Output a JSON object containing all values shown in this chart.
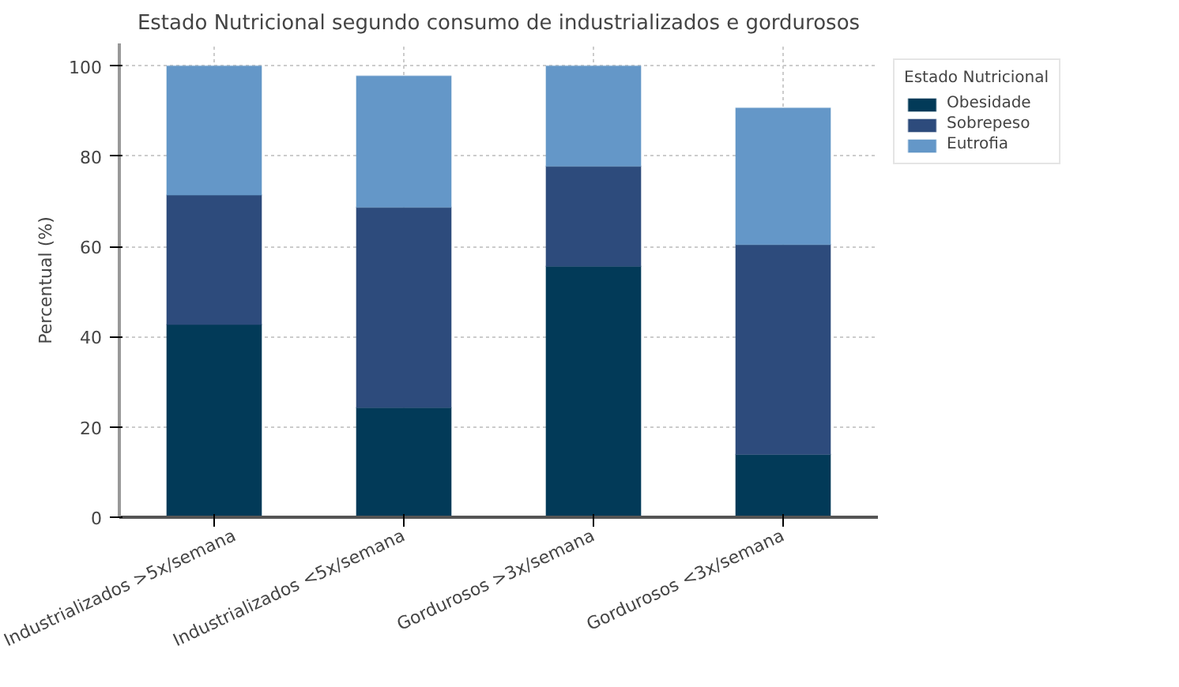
{
  "chart_data": {
    "type": "bar",
    "title": "Estado Nutricional segundo consumo de industrializados e gordurosos",
    "ylabel": "Percentual (%)",
    "legend_title": "Estado Nutricional",
    "categories": [
      "Industrializados >5x/semana",
      "Industrializados <5x/semana",
      "Gordurosos >3x/semana",
      "Gordurosos <3x/semana"
    ],
    "stacked": true,
    "series": [
      {
        "name": "Obesidade",
        "color": "#023a58",
        "values": [
          42.7,
          24.3,
          55.6,
          13.9
        ]
      },
      {
        "name": "Sobrepeso",
        "color": "#2d4b7c",
        "values": [
          28.7,
          44.4,
          22.2,
          46.5
        ]
      },
      {
        "name": "Eutrofia",
        "color": "#6497c8",
        "values": [
          28.6,
          29.1,
          22.2,
          30.3
        ]
      }
    ],
    "ylim": [
      0,
      105
    ],
    "yticks": [
      0,
      20,
      40,
      60,
      80,
      100
    ],
    "grid": true,
    "legend": "top right"
  }
}
